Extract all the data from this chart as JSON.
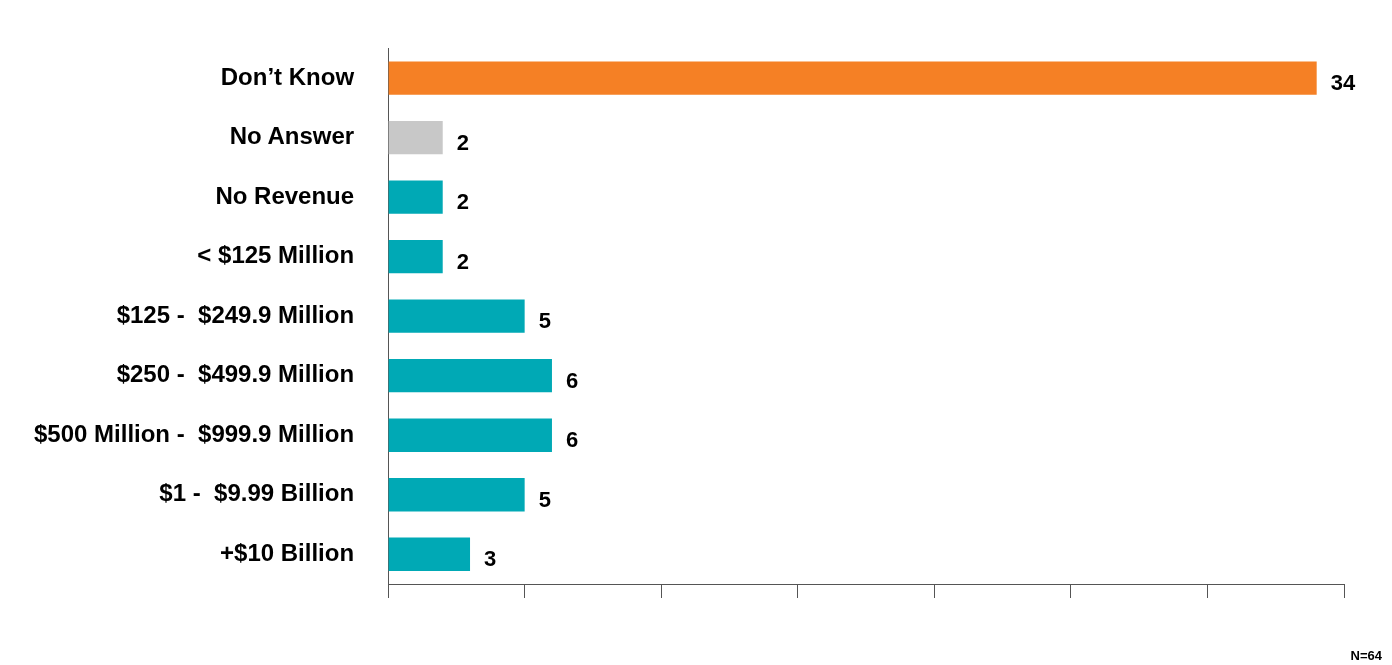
{
  "chart_data": {
    "type": "bar",
    "orientation": "horizontal",
    "categories": [
      "Don’t Know",
      "No Answer",
      "No Revenue",
      "< $125 Million",
      "$125 -  $249.9 Million",
      "$250 -  $499.9 Million",
      "$500 Million -  $999.9 Million",
      "$1 -  $9.99 Billion",
      "+$10 Billion"
    ],
    "values": [
      34,
      2,
      2,
      2,
      5,
      6,
      6,
      5,
      3
    ],
    "colors": [
      "#f58025",
      "#c8c8c8",
      "#00a9b5",
      "#00a9b5",
      "#00a9b5",
      "#00a9b5",
      "#00a9b5",
      "#00a9b5",
      "#00a9b5"
    ],
    "xlim": [
      0,
      35
    ],
    "xticks": [
      {
        "value": 0,
        "label": null
      },
      {
        "value": 5,
        "label": null
      },
      {
        "value": 10,
        "label": null
      },
      {
        "value": 15,
        "label": null
      },
      {
        "value": 20,
        "label": null
      },
      {
        "value": 25,
        "label": null
      },
      {
        "value": 30,
        "label": null
      },
      {
        "value": 35,
        "label": null
      }
    ],
    "tick_labels": "y",
    "grid": false,
    "legend": false,
    "data_labels": true,
    "annotations": [
      "N=64"
    ]
  }
}
